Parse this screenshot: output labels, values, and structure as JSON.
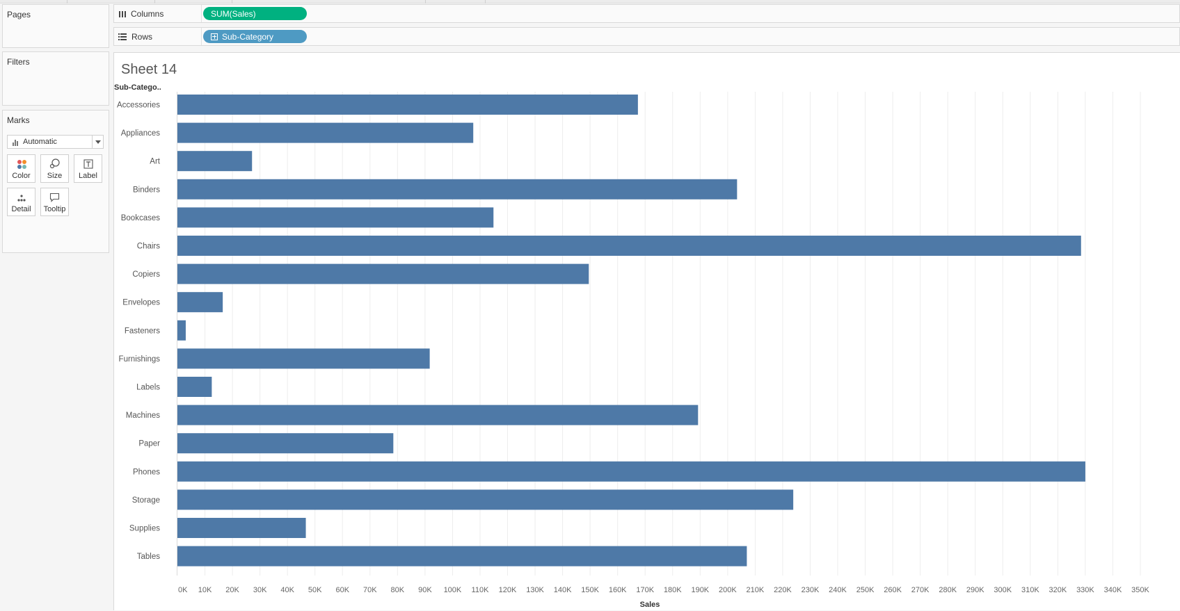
{
  "panels": {
    "pages": {
      "title": "Pages"
    },
    "filters": {
      "title": "Filters"
    },
    "marks": {
      "title": "Marks",
      "mark_type": "Automatic",
      "buttons": {
        "color": "Color",
        "size": "Size",
        "label": "Label",
        "detail": "Detail",
        "tooltip": "Tooltip"
      }
    }
  },
  "shelves": {
    "columns": {
      "label": "Columns",
      "pill": "SUM(Sales)"
    },
    "rows": {
      "label": "Rows",
      "pill": "Sub-Category"
    }
  },
  "sheet": {
    "title": "Sheet 14"
  },
  "colors": {
    "bar": "#4e79a7",
    "columns_pill": "#00b180",
    "rows_pill": "#4e9ac3"
  },
  "chart_data": {
    "type": "bar",
    "orientation": "horizontal",
    "row_header": "Sub-Catego..",
    "xlabel": "Sales",
    "xlim": [
      0,
      350000
    ],
    "x_ticks": [
      "0K",
      "10K",
      "20K",
      "30K",
      "40K",
      "50K",
      "60K",
      "70K",
      "80K",
      "90K",
      "100K",
      "110K",
      "120K",
      "130K",
      "140K",
      "150K",
      "160K",
      "170K",
      "180K",
      "190K",
      "200K",
      "210K",
      "220K",
      "230K",
      "240K",
      "250K",
      "260K",
      "270K",
      "280K",
      "290K",
      "300K",
      "310K",
      "320K",
      "330K",
      "340K",
      "350K"
    ],
    "gridlines": "vertical",
    "categories": [
      "Accessories",
      "Appliances",
      "Art",
      "Binders",
      "Bookcases",
      "Chairs",
      "Copiers",
      "Envelopes",
      "Fasteners",
      "Furnishings",
      "Labels",
      "Machines",
      "Paper",
      "Phones",
      "Storage",
      "Supplies",
      "Tables"
    ],
    "values": [
      167380,
      107532,
      27119,
      203413,
      114880,
      328449,
      149528,
      16476,
      3024,
      91705,
      12486,
      189239,
      78479,
      330007,
      223844,
      46674,
      206966
    ]
  }
}
